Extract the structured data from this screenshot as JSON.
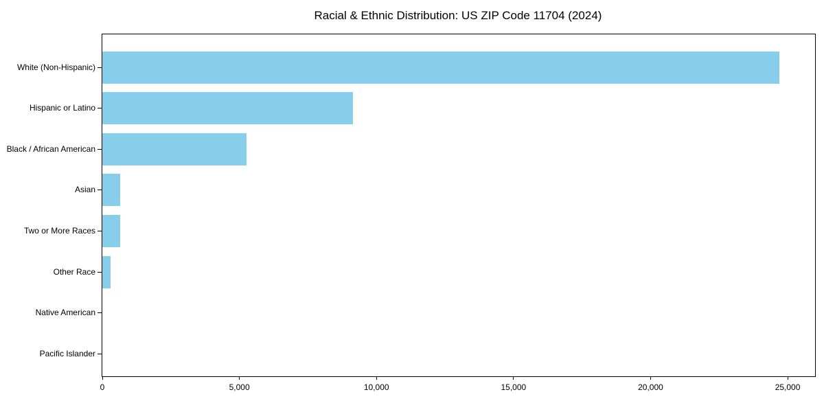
{
  "chart_data": {
    "type": "bar",
    "orientation": "horizontal",
    "title": "Racial & Ethnic Distribution: US ZIP Code 11704 (2024)",
    "xlabel": "",
    "ylabel": "",
    "categories": [
      "White (Non-Hispanic)",
      "Hispanic or Latino",
      "Black / African American",
      "Asian",
      "Two or More Races",
      "Other Race",
      "Native American",
      "Pacific Islander"
    ],
    "values": [
      24700,
      9150,
      5250,
      650,
      660,
      310,
      0,
      0
    ],
    "xlim": [
      0,
      26000
    ],
    "x_ticks": [
      0,
      5000,
      10000,
      15000,
      20000,
      25000
    ],
    "x_tick_labels": [
      "0",
      "5,000",
      "10,000",
      "15,000",
      "20,000",
      "25,000"
    ],
    "bar_color": "#87CEEB",
    "axis_color": "#000000",
    "text_color": "#000000",
    "background_color": "#ffffff",
    "grid": false,
    "legend": false
  }
}
